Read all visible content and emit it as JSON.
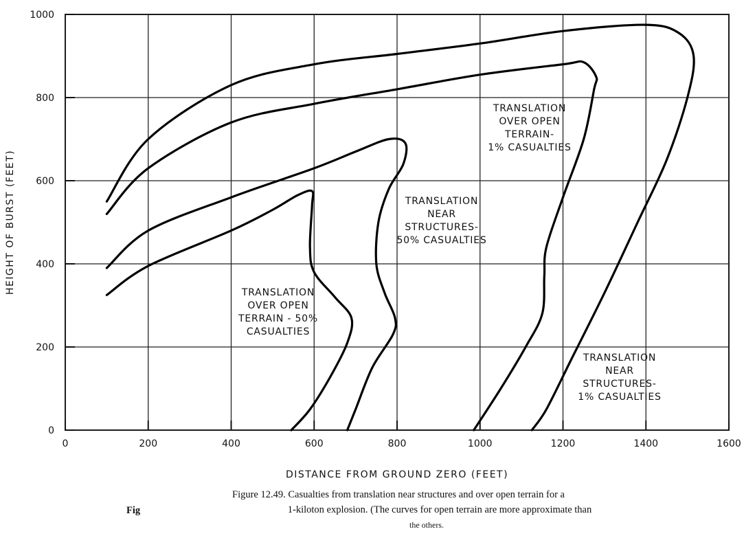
{
  "chart_data": {
    "type": "line",
    "xlabel": "DISTANCE FROM GROUND ZERO (FEET)",
    "ylabel": "HEIGHT OF BURST (FEET)",
    "xlim": [
      0,
      1600
    ],
    "ylim": [
      0,
      1000
    ],
    "xticks": [
      0,
      200,
      400,
      600,
      800,
      1000,
      1200,
      1400,
      1600
    ],
    "yticks": [
      0,
      200,
      400,
      600,
      800,
      1000
    ],
    "grid": true,
    "series": [
      {
        "color": "#000000",
        "x": [
          100,
          200,
          400,
          600,
          800,
          1000,
          1200,
          1400,
          1480,
          1515,
          1500,
          1450,
          1380,
          1300,
          1220,
          1160,
          1125
        ],
        "values": [
          550,
          700,
          830,
          880,
          905,
          930,
          960,
          975,
          955,
          900,
          800,
          650,
          500,
          330,
          170,
          50,
          0
        ]
      },
      {
        "color": "#000000",
        "x": [
          100,
          200,
          400,
          600,
          800,
          1000,
          1200,
          1250,
          1280,
          1275,
          1250,
          1200,
          1160,
          1155,
          1150,
          1110,
          1050,
          985
        ],
        "values": [
          520,
          630,
          740,
          785,
          820,
          855,
          880,
          885,
          850,
          820,
          700,
          560,
          440,
          370,
          280,
          200,
          100,
          0
        ]
      },
      {
        "color": "#000000",
        "x": [
          100,
          200,
          400,
          600,
          700,
          780,
          820,
          815,
          780,
          755,
          750,
          770,
          795,
          790,
          740,
          700,
          680
        ],
        "values": [
          390,
          480,
          560,
          630,
          670,
          700,
          690,
          640,
          580,
          500,
          400,
          330,
          270,
          230,
          150,
          50,
          0
        ]
      },
      {
        "color": "#000000",
        "x": [
          100,
          200,
          400,
          500,
          560,
          595,
          595,
          590,
          600,
          650,
          690,
          680,
          640,
          590,
          545
        ],
        "values": [
          325,
          395,
          480,
          530,
          565,
          575,
          540,
          440,
          380,
          320,
          270,
          210,
          130,
          50,
          0
        ]
      }
    ],
    "annotations": [
      [
        "TRANSLATION",
        "OVER OPEN",
        "TERRAIN-",
        "1% CASUALTIES"
      ],
      [
        "TRANSLATION",
        "NEAR",
        "STRUCTURES-",
        "50% CASUALTIES"
      ],
      [
        "TRANSLATION",
        "OVER OPEN",
        "TERRAIN - 50%",
        "CASUALTIES"
      ],
      [
        "TRANSLATION",
        "NEAR",
        "STRUCTURES-",
        "1% CASUALTIES"
      ]
    ],
    "caption": [
      "Figure 12.49.   Casualties from translation near structures and over open terrain for a",
      "1-kiloton explosion. (The curves for open terrain are more approximate than",
      "the others."
    ],
    "caption_fragment": "Fig"
  }
}
